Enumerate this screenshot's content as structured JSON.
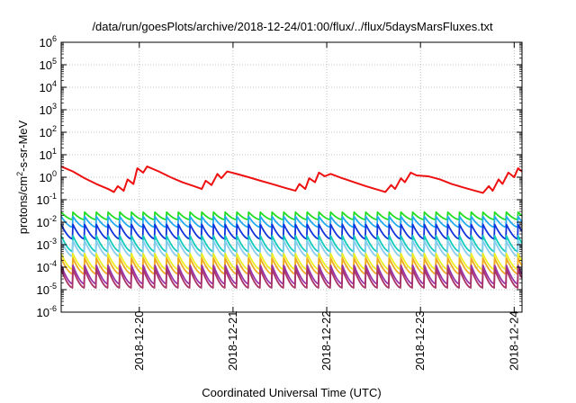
{
  "chart_data": {
    "type": "line",
    "title": "/data/run/goesPlots/archive/2018-12-24/01:00/flux/../flux/5daysMarsFluxes.txt",
    "xlabel": "Coordinated Universal Time (UTC)",
    "ylabel": "protons/cm²-s-sr-MeV",
    "ylabel_parts": {
      "main": "protons/cm",
      "sup": "2",
      "rest": "-s-sr-MeV"
    },
    "yscale": "log",
    "ylim": [
      1e-06,
      1000000.0
    ],
    "xlim": [
      "2018-12-19 04:00",
      "2018-12-24 02:00"
    ],
    "grid": true,
    "legend": "none",
    "x_ticks": [
      {
        "at": "2018-12-20 00:00",
        "label": "2018-12-20"
      },
      {
        "at": "2018-12-21 00:00",
        "label": "2018-12-21"
      },
      {
        "at": "2018-12-22 00:00",
        "label": "2018-12-22"
      },
      {
        "at": "2018-12-23 00:00",
        "label": "2018-12-23"
      },
      {
        "at": "2018-12-24 00:00",
        "label": "2018-12-24"
      }
    ],
    "y_ticks": [
      {
        "exp": "-6"
      },
      {
        "exp": "-5"
      },
      {
        "exp": "-4"
      },
      {
        "exp": "-3"
      },
      {
        "exp": "-2"
      },
      {
        "exp": "-1"
      },
      {
        "exp": "0"
      },
      {
        "exp": "1"
      },
      {
        "exp": "2"
      },
      {
        "exp": "3"
      },
      {
        "exp": "4"
      },
      {
        "exp": "5"
      },
      {
        "exp": "6"
      }
    ],
    "y_tick_base": "10",
    "series": [
      {
        "color": "#ee1111",
        "x": [
          "2018-12-19 04:00",
          "2018-12-19 07:00",
          "2018-12-19 10:00",
          "2018-12-19 13:00",
          "2018-12-19 16:00",
          "2018-12-19 17:30",
          "2018-12-19 18:30",
          "2018-12-19 20:00",
          "2018-12-19 21:00",
          "2018-12-19 22:30",
          "2018-12-19 23:30",
          "2018-12-20 01:00",
          "2018-12-20 02:00",
          "2018-12-20 05:00",
          "2018-12-20 08:00",
          "2018-12-20 11:00",
          "2018-12-20 14:00",
          "2018-12-20 16:00",
          "2018-12-20 17:00",
          "2018-12-20 18:30",
          "2018-12-20 20:00",
          "2018-12-20 21:00",
          "2018-12-20 22:30",
          "2018-12-21 01:00",
          "2018-12-21 04:00",
          "2018-12-21 07:00",
          "2018-12-21 10:00",
          "2018-12-21 13:00",
          "2018-12-21 16:00",
          "2018-12-21 17:00",
          "2018-12-21 18:30",
          "2018-12-21 19:30",
          "2018-12-21 21:00",
          "2018-12-21 22:00",
          "2018-12-21 23:30",
          "2018-12-22 01:00",
          "2018-12-22 04:00",
          "2018-12-22 07:00",
          "2018-12-22 10:00",
          "2018-12-22 13:00",
          "2018-12-22 15:00",
          "2018-12-22 16:30",
          "2018-12-22 17:30",
          "2018-12-22 19:00",
          "2018-12-22 20:00",
          "2018-12-22 21:30",
          "2018-12-22 23:00",
          "2018-12-23 02:00",
          "2018-12-23 05:00",
          "2018-12-23 08:00",
          "2018-12-23 11:00",
          "2018-12-23 14:00",
          "2018-12-23 16:00",
          "2018-12-23 17:30",
          "2018-12-23 18:30",
          "2018-12-23 20:00",
          "2018-12-23 21:00",
          "2018-12-23 22:30",
          "2018-12-24 00:00",
          "2018-12-24 01:00",
          "2018-12-24 02:00"
        ],
        "y": [
          3.0,
          1.8,
          0.9,
          0.5,
          0.3,
          0.22,
          0.4,
          0.25,
          0.8,
          0.5,
          2.5,
          1.6,
          3.0,
          1.8,
          1.0,
          0.6,
          0.4,
          0.3,
          0.7,
          0.45,
          1.4,
          0.9,
          1.8,
          1.4,
          1.0,
          0.7,
          0.5,
          0.35,
          0.25,
          0.5,
          0.3,
          0.9,
          0.6,
          1.6,
          1.1,
          1.4,
          0.9,
          0.6,
          0.4,
          0.28,
          0.22,
          0.45,
          0.3,
          0.9,
          0.6,
          1.6,
          1.2,
          1.1,
          0.8,
          0.5,
          0.35,
          0.25,
          0.2,
          0.4,
          0.25,
          0.8,
          0.5,
          1.6,
          1.0,
          2.5,
          1.8
        ]
      },
      {
        "color": "#22dd22",
        "profile": "sawtooth",
        "period_hours": 3,
        "peak": 0.028,
        "trough": 0.013
      },
      {
        "color": "#22aaee",
        "profile": "sawtooth",
        "period_hours": 3,
        "peak": 0.018,
        "trough": 0.006
      },
      {
        "color": "#1133dd",
        "profile": "sawtooth",
        "period_hours": 3,
        "peak": 0.008,
        "trough": 0.0018
      },
      {
        "color": "#11ccbb",
        "profile": "sawtooth",
        "period_hours": 3,
        "peak": 0.0025,
        "trough": 0.0005
      },
      {
        "color": "#88ccee",
        "profile": "sawtooth",
        "period_hours": 3,
        "peak": 0.0015,
        "trough": 0.0003
      },
      {
        "color": "#eeee22",
        "profile": "sawtooth",
        "period_hours": 3,
        "peak": 0.0004,
        "trough": 8e-05
      },
      {
        "color": "#eeaa22",
        "profile": "sawtooth",
        "period_hours": 3,
        "peak": 0.00025,
        "trough": 5e-05
      },
      {
        "color": "#9933aa",
        "profile": "sawtooth",
        "period_hours": 3,
        "peak": 0.00012,
        "trough": 1.8e-05
      },
      {
        "color": "#aa3366",
        "profile": "sawtooth",
        "period_hours": 3,
        "peak": 8e-05,
        "trough": 1.2e-05
      }
    ]
  }
}
